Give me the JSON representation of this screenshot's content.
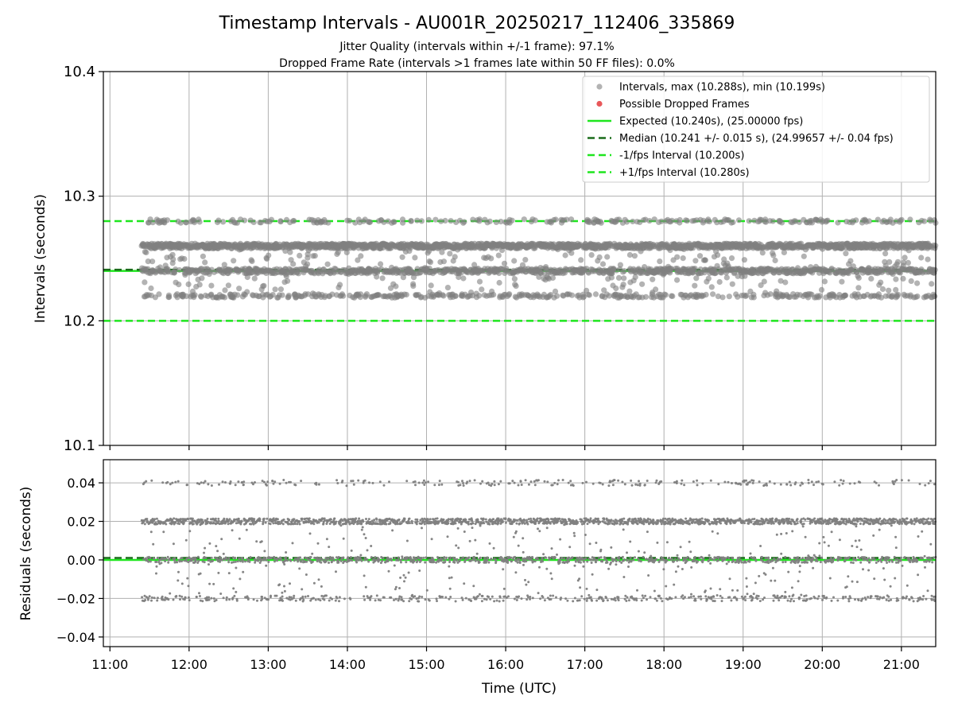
{
  "title": "Timestamp Intervals - AU001R_20250217_112406_335869",
  "subtitle_1": "Jitter Quality (intervals within +/-1 frame): 97.1%",
  "subtitle_2": "Dropped Frame Rate (intervals >1 frames late within 50 FF files): 0.0%",
  "colors": {
    "points": "#808080",
    "dropped": "#e8585a",
    "expected": "#1ee61e",
    "median": "#1a6b1a",
    "bounds": "#1ee61e",
    "grid": "#b0b0b0"
  },
  "chart_data": [
    {
      "type": "scatter",
      "ylabel": "Intervals (seconds)",
      "xlim": [
        "10:55",
        "21:26"
      ],
      "ylim": [
        10.1,
        10.4
      ],
      "x_ticks": [
        "11:00",
        "12:00",
        "13:00",
        "14:00",
        "15:00",
        "16:00",
        "17:00",
        "18:00",
        "19:00",
        "20:00",
        "21:00"
      ],
      "y_ticks": [
        "10.1",
        "10.2",
        "10.3",
        "10.4"
      ],
      "y_tick_values": [
        10.1,
        10.2,
        10.3,
        10.4
      ],
      "grid": true,
      "legend_position": "top-right",
      "data_range": {
        "start": "11:24",
        "end": "21:26"
      },
      "levels": [
        {
          "value": 10.26,
          "share": 0.45,
          "spread": 0.002
        },
        {
          "value": 10.24,
          "share": 0.25,
          "spread": 0.002
        },
        {
          "value": 10.22,
          "share": 0.12,
          "spread": 0.0015
        },
        {
          "value": 10.28,
          "share": 0.08,
          "spread": 0.0015
        },
        {
          "value": 10.25,
          "share": 0.05,
          "spread": 0.01
        },
        {
          "value": 10.23,
          "share": 0.05,
          "spread": 0.01
        }
      ],
      "reference_lines": [
        {
          "name": "expected",
          "value": 10.24,
          "style": "solid"
        },
        {
          "name": "median",
          "value": 10.241,
          "style": "dashed"
        },
        {
          "name": "minus_bound",
          "value": 10.2,
          "style": "dashed"
        },
        {
          "name": "plus_bound",
          "value": 10.28,
          "style": "dashed"
        }
      ],
      "legend": [
        {
          "label": "Intervals, max (10.288s), min (10.199s)",
          "marker": "point"
        },
        {
          "label": "Possible Dropped Frames",
          "marker": "dropped"
        },
        {
          "label": "Expected (10.240s), (25.00000 fps)",
          "marker": "expected"
        },
        {
          "label": "Median (10.241 +/- 0.015 s), (24.99657 +/- 0.04 fps)",
          "marker": "median"
        },
        {
          "label": "-1/fps Interval (10.200s)",
          "marker": "bound"
        },
        {
          "label": "+1/fps Interval (10.280s)",
          "marker": "bound"
        }
      ]
    },
    {
      "type": "scatter",
      "xlabel": "Time (UTC)",
      "ylabel": "Residuals (seconds)",
      "xlim": [
        "10:55",
        "21:26"
      ],
      "ylim": [
        -0.045,
        0.052
      ],
      "x_ticks": [
        "11:00",
        "12:00",
        "13:00",
        "14:00",
        "15:00",
        "16:00",
        "17:00",
        "18:00",
        "19:00",
        "20:00",
        "21:00"
      ],
      "y_ticks": [
        "−0.04",
        "−0.02",
        "0.00",
        "0.02",
        "0.04"
      ],
      "y_tick_values": [
        -0.04,
        -0.02,
        0.0,
        0.02,
        0.04
      ],
      "grid": true,
      "levels": [
        {
          "value": 0.02,
          "share": 0.45,
          "spread": 0.0015
        },
        {
          "value": 0.0,
          "share": 0.25,
          "spread": 0.0015
        },
        {
          "value": -0.02,
          "share": 0.12,
          "spread": 0.0015
        },
        {
          "value": 0.04,
          "share": 0.08,
          "spread": 0.0015
        },
        {
          "value": 0.01,
          "share": 0.05,
          "spread": 0.01
        },
        {
          "value": -0.01,
          "share": 0.05,
          "spread": 0.01
        }
      ],
      "reference_lines": [
        {
          "name": "expected",
          "value": 0.0,
          "style": "solid"
        },
        {
          "name": "median",
          "value": 0.001,
          "style": "dashed"
        }
      ]
    }
  ]
}
